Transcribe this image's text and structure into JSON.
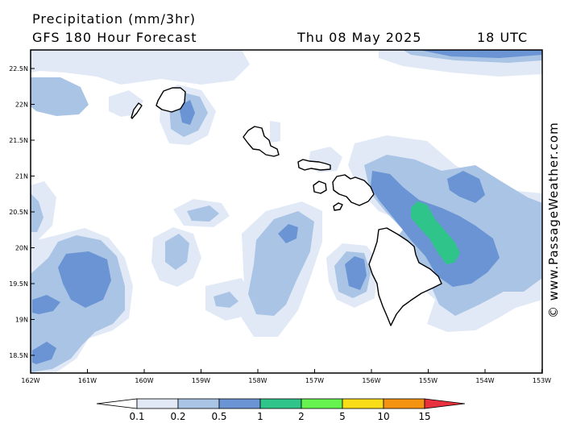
{
  "header": {
    "title": "Precipitation (mm/3hr)",
    "subtitle": "GFS 180 Hour Forecast",
    "date": "Thu 08 May 2025",
    "time": "18 UTC"
  },
  "credit": "© www.PassageWeather.com",
  "axes": {
    "lat_labels": [
      "22.5N",
      "22N",
      "21.5N",
      "21N",
      "20.5N",
      "20N",
      "19.5N",
      "19N",
      "18.5N"
    ],
    "lon_labels": [
      "162W",
      "161W",
      "160W",
      "159W",
      "158W",
      "157W",
      "156W",
      "155W",
      "154W",
      "153W"
    ]
  },
  "legend": {
    "labels": [
      "0.1",
      "0.2",
      "0.5",
      "1",
      "2",
      "5",
      "10",
      "15"
    ],
    "colors": [
      "#ffffff",
      "#e1e9f6",
      "#a9c4e5",
      "#6a94d3",
      "#2fc58a",
      "#66f24f",
      "#f9dd18",
      "#f49311",
      "#e8303f"
    ]
  },
  "colors": {
    "level1": "#e1e9f6",
    "level2": "#a9c4e5",
    "level3": "#6a94d3",
    "level4": "#2fc58a",
    "coast": "#000000"
  }
}
